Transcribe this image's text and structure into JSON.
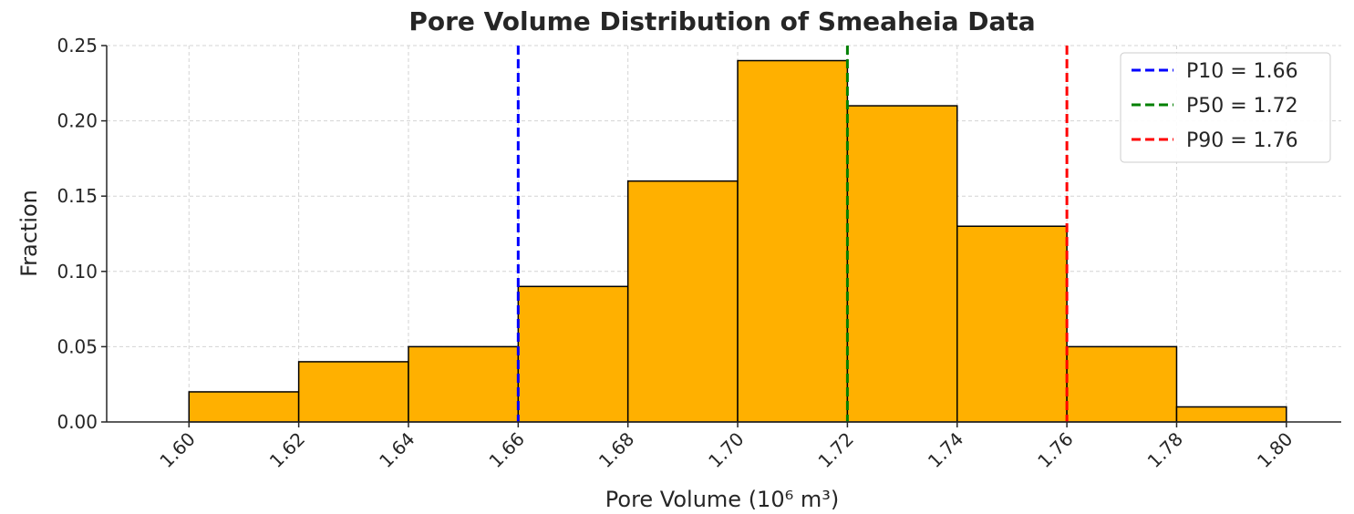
{
  "chart_data": {
    "type": "bar",
    "title": "Pore Volume Distribution of Smeaheia Data",
    "xlabel": "Pore Volume (10⁶ m³)",
    "ylabel": "Fraction",
    "bin_edges": [
      1.6,
      1.62,
      1.64,
      1.66,
      1.68,
      1.7,
      1.72,
      1.74,
      1.76,
      1.78,
      1.8
    ],
    "values": [
      0.02,
      0.04,
      0.05,
      0.09,
      0.16,
      0.24,
      0.21,
      0.13,
      0.05,
      0.01
    ],
    "xlim": [
      1.585,
      1.81
    ],
    "ylim": [
      0,
      0.25
    ],
    "x_ticks": [
      "1.60",
      "1.62",
      "1.64",
      "1.66",
      "1.68",
      "1.70",
      "1.72",
      "1.74",
      "1.76",
      "1.78",
      "1.80"
    ],
    "y_ticks": [
      "0.00",
      "0.05",
      "0.10",
      "0.15",
      "0.20",
      "0.25"
    ],
    "bar_color": "#FFB000",
    "bar_edge_color": "#000000",
    "grid": true,
    "legend_position": "top-right",
    "reference_lines": [
      {
        "label": "P10 = 1.66",
        "x": 1.66,
        "color": "#0000FF",
        "style": "dashed"
      },
      {
        "label": "P50 = 1.72",
        "x": 1.72,
        "color": "#008000",
        "style": "dashed"
      },
      {
        "label": "P90 = 1.76",
        "x": 1.76,
        "color": "#FF0000",
        "style": "dashed"
      }
    ]
  }
}
